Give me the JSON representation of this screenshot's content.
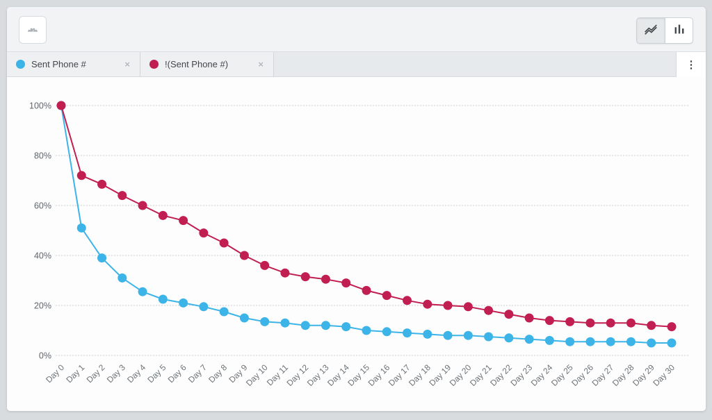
{
  "toolbar": {
    "dashboard_button": {
      "icon": "gauge-icon"
    },
    "chart_type_toggle": {
      "selected": "line",
      "options": [
        "line",
        "bar"
      ]
    }
  },
  "tab_bar": {
    "tabs": [
      {
        "label": "Sent Phone #",
        "color": "#3db4e8",
        "close_glyph": "×"
      },
      {
        "label": "!(Sent Phone #)",
        "color": "#c11f51",
        "close_glyph": "×"
      }
    ],
    "kebab_glyph": "⋮"
  },
  "chart_data": {
    "type": "line",
    "x": [
      "Day 0",
      "Day 1",
      "Day 2",
      "Day 3",
      "Day 4",
      "Day 5",
      "Day 6",
      "Day 7",
      "Day 8",
      "Day 9",
      "Day 10",
      "Day 11",
      "Day 12",
      "Day 13",
      "Day 14",
      "Day 15",
      "Day 16",
      "Day 17",
      "Day 18",
      "Day 19",
      "Day 20",
      "Day 21",
      "Day 22",
      "Day 23",
      "Day 24",
      "Day 25",
      "Day 26",
      "Day 27",
      "Day 28",
      "Day 29",
      "Day 30"
    ],
    "series": [
      {
        "name": "Sent Phone #",
        "color": "#3db4e8",
        "values": [
          100,
          51,
          39,
          31,
          25.5,
          22.5,
          21,
          19.5,
          17.5,
          15,
          13.5,
          13,
          12,
          12,
          11.5,
          10,
          9.5,
          9,
          8.5,
          8,
          8,
          7.5,
          7,
          6.5,
          6,
          5.5,
          5.5,
          5.5,
          5.5,
          5,
          5
        ]
      },
      {
        "name": "!(Sent Phone #)",
        "color": "#c11f51",
        "values": [
          100,
          72,
          68.5,
          64,
          60,
          56,
          54,
          49,
          45,
          40,
          36,
          33,
          31.5,
          30.5,
          29,
          26,
          24,
          22,
          20.5,
          20,
          19.5,
          18,
          16.5,
          15,
          14,
          13.5,
          13,
          13,
          13,
          12,
          11.5
        ]
      }
    ],
    "y_ticks": [
      "0%",
      "20%",
      "40%",
      "60%",
      "80%",
      "100%"
    ],
    "ylim": [
      0,
      100
    ],
    "grid": "horizontal-dotted",
    "legend_position": "tabs"
  },
  "colors": {
    "grid": "#c7ccd0",
    "y_label": "#5f656a",
    "x_label": "#6d7377"
  }
}
